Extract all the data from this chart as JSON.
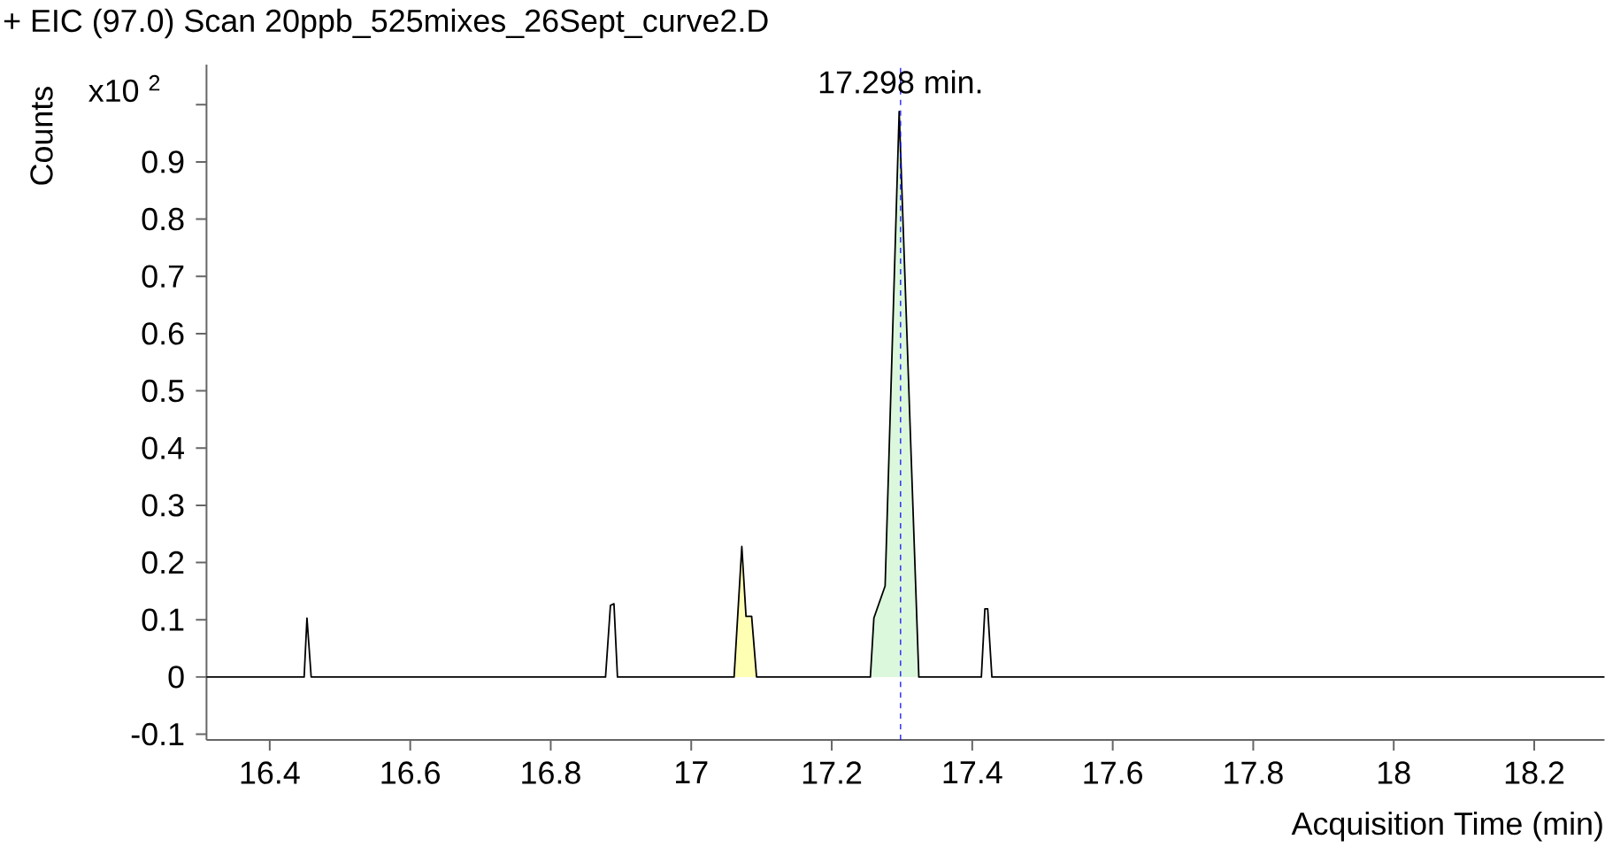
{
  "chart_data": {
    "type": "line",
    "title": "+ EIC (97.0) Scan 20ppb_525mixes_26Sept_curve2.D",
    "xlabel": "Acquisition Time (min)",
    "ylabel": "Counts",
    "annotations": [
      "x10 $^{2}$"
    ],
    "series": [
      {
        "type": "area",
        "color": "#ffffb4",
        "x": [
          17.061,
          17.072,
          17.078,
          17.086,
          17.093
        ],
        "values": [
          0,
          0.228,
          0.106,
          0.106,
          0
        ]
      },
      {
        "type": "area",
        "color": "#dcf8dc",
        "x": [
          17.255,
          17.26,
          17.276,
          17.296,
          17.324
        ],
        "values": [
          0,
          0.103,
          0.159,
          0.988,
          0
        ]
      },
      {
        "color": "#000000",
        "x": [
          16.31,
          16.449,
          16.453,
          16.459,
          16.878,
          16.885,
          16.89,
          16.895,
          17.061,
          17.072,
          17.078,
          17.086,
          17.093,
          17.255,
          17.26,
          17.276,
          17.296,
          17.324,
          17.413,
          17.418,
          17.422,
          17.428,
          18.3
        ],
        "values": [
          0,
          0,
          0.103,
          0,
          0,
          0.125,
          0.128,
          0,
          0,
          0.228,
          0.106,
          0.106,
          0,
          0,
          0.103,
          0.159,
          0.988,
          0,
          0,
          0.119,
          0.119,
          0,
          0
        ]
      }
    ],
    "ref_lines": [
      {
        "axis": "x",
        "value": 17.298,
        "label": "17.298 min.",
        "color": "#0000ff",
        "line_style": "dashed"
      }
    ],
    "xlim": [
      16.31,
      18.3
    ],
    "ylim": [
      -0.11,
      1.07
    ],
    "xticks": [
      16.4,
      16.6,
      16.8,
      17,
      17.2,
      17.4,
      17.6,
      17.8,
      18,
      18.2
    ],
    "yticks": [
      -0.1,
      0,
      0.1,
      0.2,
      0.3,
      0.4,
      0.5,
      0.6,
      0.7,
      0.8,
      0.9,
      {
        "value": 1.0,
        "label": null
      }
    ],
    "grid": false,
    "marker": "none"
  }
}
